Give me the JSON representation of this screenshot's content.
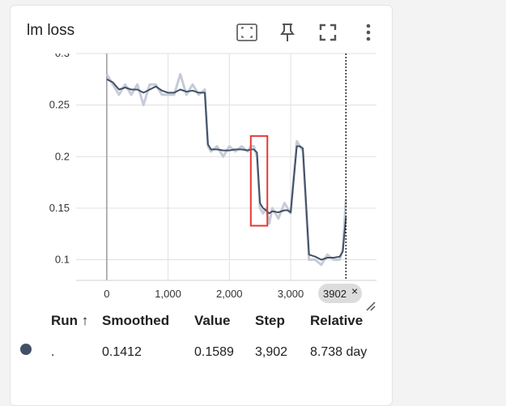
{
  "card": {
    "title": "lm loss",
    "icons": [
      "fit-domain-icon",
      "pin-icon",
      "fullscreen-icon",
      "more-vert-icon"
    ]
  },
  "chart_data": {
    "type": "line",
    "title": "lm loss",
    "xlabel": "",
    "ylabel": "",
    "xlim": [
      -500,
      4400
    ],
    "ylim": [
      0.08,
      0.3
    ],
    "x_ticks": [
      0,
      1000,
      2000,
      3000
    ],
    "x_tick_labels": [
      "0",
      "1,000",
      "2,000",
      "3,000"
    ],
    "y_ticks": [
      0.1,
      0.15,
      0.2,
      0.25,
      0.3
    ],
    "y_tick_labels": [
      "0.1",
      "0.15",
      "0.2",
      "0.25",
      "0.3"
    ],
    "grid": true,
    "series": [
      {
        "role": "raw",
        "color": "#c5ccd8",
        "x": [
          0,
          100,
          200,
          300,
          400,
          500,
          600,
          700,
          800,
          900,
          1000,
          1100,
          1200,
          1300,
          1400,
          1500,
          1600,
          1650,
          1700,
          1800,
          1900,
          2000,
          2100,
          2200,
          2300,
          2350,
          2400,
          2450,
          2500,
          2550,
          2600,
          2650,
          2700,
          2800,
          2900,
          2950,
          3000,
          3100,
          3150,
          3200,
          3300,
          3400,
          3500,
          3600,
          3700,
          3800,
          3850,
          3902
        ],
        "values": [
          0.28,
          0.27,
          0.26,
          0.27,
          0.26,
          0.27,
          0.25,
          0.27,
          0.27,
          0.26,
          0.26,
          0.26,
          0.28,
          0.26,
          0.27,
          0.26,
          0.265,
          0.21,
          0.205,
          0.21,
          0.2,
          0.21,
          0.205,
          0.21,
          0.205,
          0.21,
          0.21,
          0.2,
          0.15,
          0.145,
          0.15,
          0.135,
          0.15,
          0.14,
          0.155,
          0.15,
          0.145,
          0.215,
          0.21,
          0.205,
          0.1,
          0.1,
          0.095,
          0.105,
          0.1,
          0.1,
          0.11,
          0.1589
        ]
      },
      {
        "role": "smoothed",
        "color": "#425066",
        "x": [
          0,
          100,
          200,
          300,
          400,
          500,
          600,
          700,
          800,
          900,
          1000,
          1100,
          1200,
          1300,
          1400,
          1500,
          1600,
          1650,
          1700,
          1800,
          1900,
          2000,
          2100,
          2200,
          2300,
          2350,
          2400,
          2450,
          2500,
          2550,
          2600,
          2650,
          2700,
          2800,
          2900,
          2950,
          3000,
          3100,
          3150,
          3200,
          3300,
          3400,
          3500,
          3600,
          3700,
          3800,
          3850,
          3902
        ],
        "values": [
          0.275,
          0.272,
          0.265,
          0.267,
          0.265,
          0.265,
          0.262,
          0.265,
          0.268,
          0.264,
          0.262,
          0.262,
          0.265,
          0.263,
          0.264,
          0.262,
          0.262,
          0.212,
          0.207,
          0.207,
          0.206,
          0.206,
          0.207,
          0.207,
          0.206,
          0.207,
          0.207,
          0.204,
          0.155,
          0.15,
          0.148,
          0.145,
          0.147,
          0.146,
          0.148,
          0.148,
          0.146,
          0.21,
          0.21,
          0.208,
          0.105,
          0.103,
          0.1,
          0.102,
          0.102,
          0.103,
          0.108,
          0.1412
        ]
      }
    ],
    "cursor_step": 3902,
    "highlight_box": {
      "x_range": [
        2350,
        2620
      ],
      "y_range": [
        0.133,
        0.22
      ],
      "color": "#e53935"
    }
  },
  "cursor_badge": {
    "label": "3902",
    "close": "×"
  },
  "table": {
    "headers": {
      "run": "Run ↑",
      "smoothed": "Smoothed",
      "value": "Value",
      "step": "Step",
      "relative": "Relative"
    },
    "row": {
      "run_color": "#425066",
      "run": ".",
      "smoothed": "0.1412",
      "value": "0.1589",
      "step": "3,902",
      "relative": "8.738 day"
    }
  }
}
